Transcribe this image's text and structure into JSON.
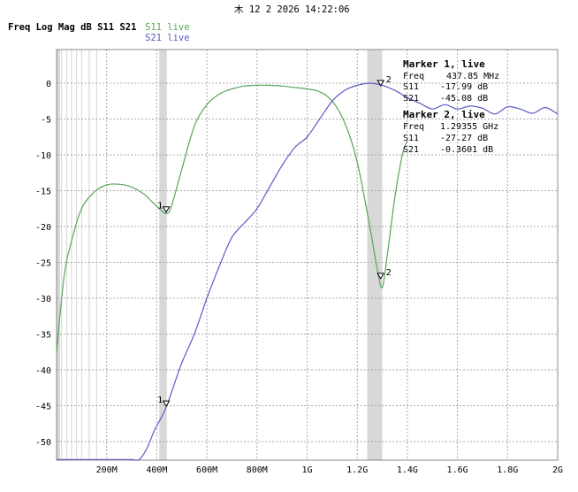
{
  "header": {
    "timestamp": "木 12 2 2026 14:22:06",
    "title": "Freq Log Mag dB S11 S21",
    "s11_label": "S11 live",
    "s21_label": "S21 live"
  },
  "colors": {
    "s11": "#5aa55a",
    "s21": "#5a5ac8",
    "grid": "#a8a8a8",
    "band": "#d8d8d8"
  },
  "chart_data": {
    "type": "line",
    "title": "Freq Log Mag dB S11 S21",
    "xlabel": "",
    "ylabel": "",
    "xlim": [
      0,
      2.0
    ],
    "ylim": [
      -53,
      5
    ],
    "x_unit": "GHz",
    "x_ticks": [
      {
        "v": 0.2,
        "label": "200M"
      },
      {
        "v": 0.4,
        "label": "400M"
      },
      {
        "v": 0.6,
        "label": "600M"
      },
      {
        "v": 0.8,
        "label": "800M"
      },
      {
        "v": 1.0,
        "label": "1G"
      },
      {
        "v": 1.2,
        "label": "1.2G"
      },
      {
        "v": 1.4,
        "label": "1.4G"
      },
      {
        "v": 1.6,
        "label": "1.6G"
      },
      {
        "v": 1.8,
        "label": "1.8G"
      },
      {
        "v": 2.0,
        "label": "2G"
      }
    ],
    "y_ticks": [
      0,
      -5,
      -10,
      -15,
      -20,
      -25,
      -30,
      -35,
      -40,
      -45,
      -50
    ],
    "grid": true,
    "bands": [
      [
        0.41,
        0.44
      ],
      [
        1.24,
        1.3
      ]
    ],
    "series": [
      {
        "name": "S11 live",
        "x": [
          0.0,
          0.03,
          0.06,
          0.1,
          0.15,
          0.2,
          0.25,
          0.3,
          0.35,
          0.38,
          0.41,
          0.44,
          0.46,
          0.5,
          0.55,
          0.6,
          0.65,
          0.7,
          0.75,
          0.8,
          0.85,
          0.9,
          0.95,
          1.0,
          1.05,
          1.1,
          1.15,
          1.2,
          1.25,
          1.28,
          1.3,
          1.32,
          1.35,
          1.38,
          1.4
        ],
        "y": [
          -37.5,
          -27,
          -22,
          -17.5,
          -15.2,
          -14.2,
          -14.1,
          -14.5,
          -15.5,
          -16.5,
          -17.5,
          -18.2,
          -17,
          -12,
          -6,
          -3,
          -1.5,
          -0.8,
          -0.4,
          -0.3,
          -0.3,
          -0.4,
          -0.6,
          -0.8,
          -1.2,
          -2.5,
          -5.5,
          -11,
          -20,
          -26,
          -28.5,
          -24,
          -16,
          -10,
          -8
        ]
      },
      {
        "name": "S21 live",
        "x": [
          0.0,
          0.1,
          0.2,
          0.25,
          0.3,
          0.33,
          0.36,
          0.39,
          0.42,
          0.44,
          0.47,
          0.5,
          0.55,
          0.6,
          0.65,
          0.7,
          0.75,
          0.8,
          0.85,
          0.9,
          0.95,
          1.0,
          1.05,
          1.1,
          1.15,
          1.2,
          1.25,
          1.3,
          1.35,
          1.4,
          1.45,
          1.5,
          1.55,
          1.6,
          1.65,
          1.7,
          1.75,
          1.8,
          1.85,
          1.9,
          1.95,
          2.0
        ],
        "y": [
          -52.5,
          -52.5,
          -52.5,
          -52.5,
          -52.5,
          -52.5,
          -51,
          -48.5,
          -46.5,
          -45,
          -42,
          -39,
          -35,
          -30,
          -25.5,
          -21.5,
          -19.5,
          -17.5,
          -14.5,
          -11.5,
          -9,
          -7.5,
          -5,
          -2.5,
          -1,
          -0.3,
          0,
          -0.3,
          -1,
          -2,
          -2.8,
          -3.6,
          -3.0,
          -3.6,
          -3.2,
          -3.5,
          -4.3,
          -3.3,
          -3.6,
          -4.2,
          -3.4,
          -4.3
        ]
      }
    ],
    "markers": [
      {
        "id": "1",
        "series": "S11",
        "x": 0.43785,
        "y": -17.99
      },
      {
        "id": "1",
        "series": "S21",
        "x": 0.43785,
        "y": -45.08
      },
      {
        "id": "2",
        "series": "S11",
        "x": 1.29355,
        "y": -27.27
      },
      {
        "id": "2",
        "series": "S21",
        "x": 1.29355,
        "y": -0.3601
      }
    ]
  },
  "marker_panel": {
    "m1": {
      "title": "Marker 1, live",
      "freq_label": "Freq",
      "freq": "437.85 MHz",
      "s11_label": "S11",
      "s11": "-17.99 dB",
      "s21_label": "S21",
      "s21": "-45.08 dB"
    },
    "m2": {
      "title": "Marker 2, live",
      "freq_label": "Freq",
      "freq": "1.29355 GHz",
      "s11_label": "S11",
      "s11": "-27.27 dB",
      "s21_label": "S21",
      "s21": "-0.3601 dB"
    }
  }
}
